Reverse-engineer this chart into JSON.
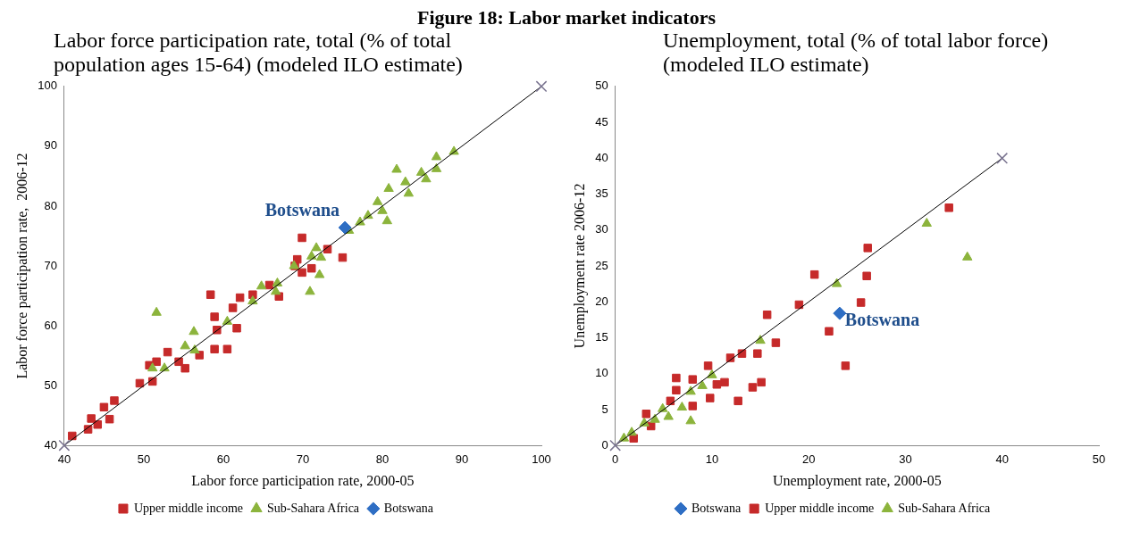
{
  "chart_data": [
    {
      "type": "scatter",
      "title": "Labor force participation rate, total (% of total population ages 15-64) (modeled ILO estimate)",
      "xlabel": "Labor force participation rate, 2000-05",
      "ylabel": "Labor force participation rate,  2006-12",
      "xlim": [
        40,
        100
      ],
      "ylim": [
        40,
        100
      ],
      "xticks": [
        40,
        50,
        60,
        70,
        80,
        90,
        100
      ],
      "yticks": [
        40,
        50,
        60,
        70,
        80,
        90,
        100
      ],
      "grid": false,
      "legend": "bottom",
      "annotations": [
        "Figure 18: Labor market indicators",
        {
          "text": "Botswana",
          "x": 75.3,
          "y": 76.4
        }
      ],
      "series": [
        {
          "name": "Upper middle income",
          "color": "#c62a2a",
          "marker": "square",
          "x": [
            69.9,
            73.1,
            75.0,
            69.3,
            69.9,
            71.1,
            69.0,
            58.4,
            62.1,
            65.8,
            67.0,
            63.7,
            61.2,
            58.9,
            61.7,
            59.2,
            60.5,
            58.9,
            57.0,
            55.2,
            53.0,
            50.7,
            51.6,
            54.4,
            49.5,
            51.1,
            46.3,
            45.0,
            45.7,
            43.4,
            43.0,
            41.0,
            44.2
          ],
          "values": [
            74.7,
            72.8,
            71.4,
            71.1,
            68.9,
            69.6,
            70.0,
            65.2,
            64.7,
            66.8,
            64.9,
            65.2,
            63.0,
            61.5,
            59.6,
            59.3,
            56.1,
            56.1,
            55.1,
            52.9,
            55.6,
            53.4,
            54.0,
            54.0,
            50.4,
            50.7,
            47.5,
            46.4,
            44.4,
            44.5,
            42.7,
            41.6,
            43.5
          ]
        },
        {
          "name": "Sub-Sahara Africa",
          "color": "#8cb43c",
          "marker": "triangle",
          "x": [
            89.0,
            86.8,
            86.8,
            84.9,
            85.5,
            81.8,
            82.9,
            83.3,
            80.8,
            79.4,
            80.0,
            80.6,
            78.2,
            77.2,
            75.8,
            71.7,
            71.1,
            72.3,
            68.9,
            72.1,
            70.9,
            66.8,
            66.6,
            64.8,
            63.7,
            60.5,
            51.6,
            56.3,
            55.2,
            56.4,
            51.1,
            52.6
          ],
          "values": [
            89.1,
            88.2,
            86.2,
            85.6,
            84.5,
            86.1,
            84.0,
            82.1,
            82.9,
            80.7,
            79.2,
            77.5,
            78.4,
            77.3,
            75.9,
            73.0,
            71.6,
            71.4,
            70.0,
            68.5,
            65.7,
            67.1,
            65.7,
            66.6,
            64.1,
            60.7,
            62.2,
            59.0,
            56.6,
            55.9,
            52.9,
            52.9
          ]
        },
        {
          "name": "Botswana",
          "color": "#2e6ec4",
          "marker": "diamond",
          "x": [
            75.3
          ],
          "values": [
            76.4
          ]
        },
        {
          "type": "line",
          "color": "#000000",
          "marker": "cross",
          "x": [
            40,
            100
          ],
          "values": [
            40,
            100
          ]
        }
      ]
    },
    {
      "type": "scatter",
      "title": "Unemployment, total (% of total labor force) (modeled ILO estimate)",
      "xlabel": "Unemployment rate, 2000-05",
      "ylabel": "Unemployment rate 2006-12",
      "xlim": [
        0,
        50
      ],
      "ylim": [
        0,
        50
      ],
      "xticks": [
        0,
        10,
        20,
        30,
        40,
        50
      ],
      "yticks": [
        0,
        5,
        10,
        15,
        20,
        25,
        30,
        35,
        40,
        45,
        50
      ],
      "grid": false,
      "legend": "bottom",
      "annotations": [
        {
          "text": "Botswana",
          "x": 23.2,
          "y": 18.4
        }
      ],
      "series": [
        {
          "name": "Botswana",
          "color": "#2e6ec4",
          "marker": "diamond",
          "x": [
            23.2
          ],
          "values": [
            18.4
          ]
        },
        {
          "name": "Upper middle income",
          "color": "#c62a2a",
          "marker": "square",
          "x": [
            34.5,
            26.1,
            20.6,
            26.0,
            25.4,
            19.0,
            15.7,
            22.1,
            23.8,
            16.6,
            15.1,
            14.2,
            12.7,
            14.7,
            13.1,
            11.9,
            9.6,
            10.5,
            9.8,
            8.0,
            6.3,
            6.3,
            8.0,
            5.7,
            3.2,
            3.7,
            1.9,
            11.3
          ],
          "values": [
            33.1,
            27.5,
            23.8,
            23.6,
            19.9,
            19.6,
            18.2,
            15.9,
            11.1,
            14.3,
            8.8,
            8.1,
            6.2,
            12.8,
            12.8,
            12.2,
            11.1,
            8.5,
            6.6,
            9.2,
            9.4,
            7.7,
            5.5,
            6.2,
            4.4,
            2.7,
            1.0,
            8.8
          ]
        },
        {
          "name": "Sub-Sahara Africa",
          "color": "#8cb43c",
          "marker": "triangle",
          "x": [
            32.2,
            36.4,
            22.9,
            15.0,
            10.0,
            9.0,
            7.8,
            6.9,
            7.8,
            5.5,
            4.1,
            3.0,
            4.9,
            0.9,
            1.7
          ],
          "values": [
            30.9,
            26.2,
            22.5,
            14.6,
            9.8,
            8.3,
            7.5,
            5.3,
            3.4,
            4.0,
            3.6,
            3.1,
            5.1,
            1.0,
            1.8
          ]
        },
        {
          "type": "line",
          "color": "#000000",
          "marker": "cross",
          "x": [
            0,
            40
          ],
          "values": [
            0,
            40
          ]
        }
      ]
    }
  ]
}
